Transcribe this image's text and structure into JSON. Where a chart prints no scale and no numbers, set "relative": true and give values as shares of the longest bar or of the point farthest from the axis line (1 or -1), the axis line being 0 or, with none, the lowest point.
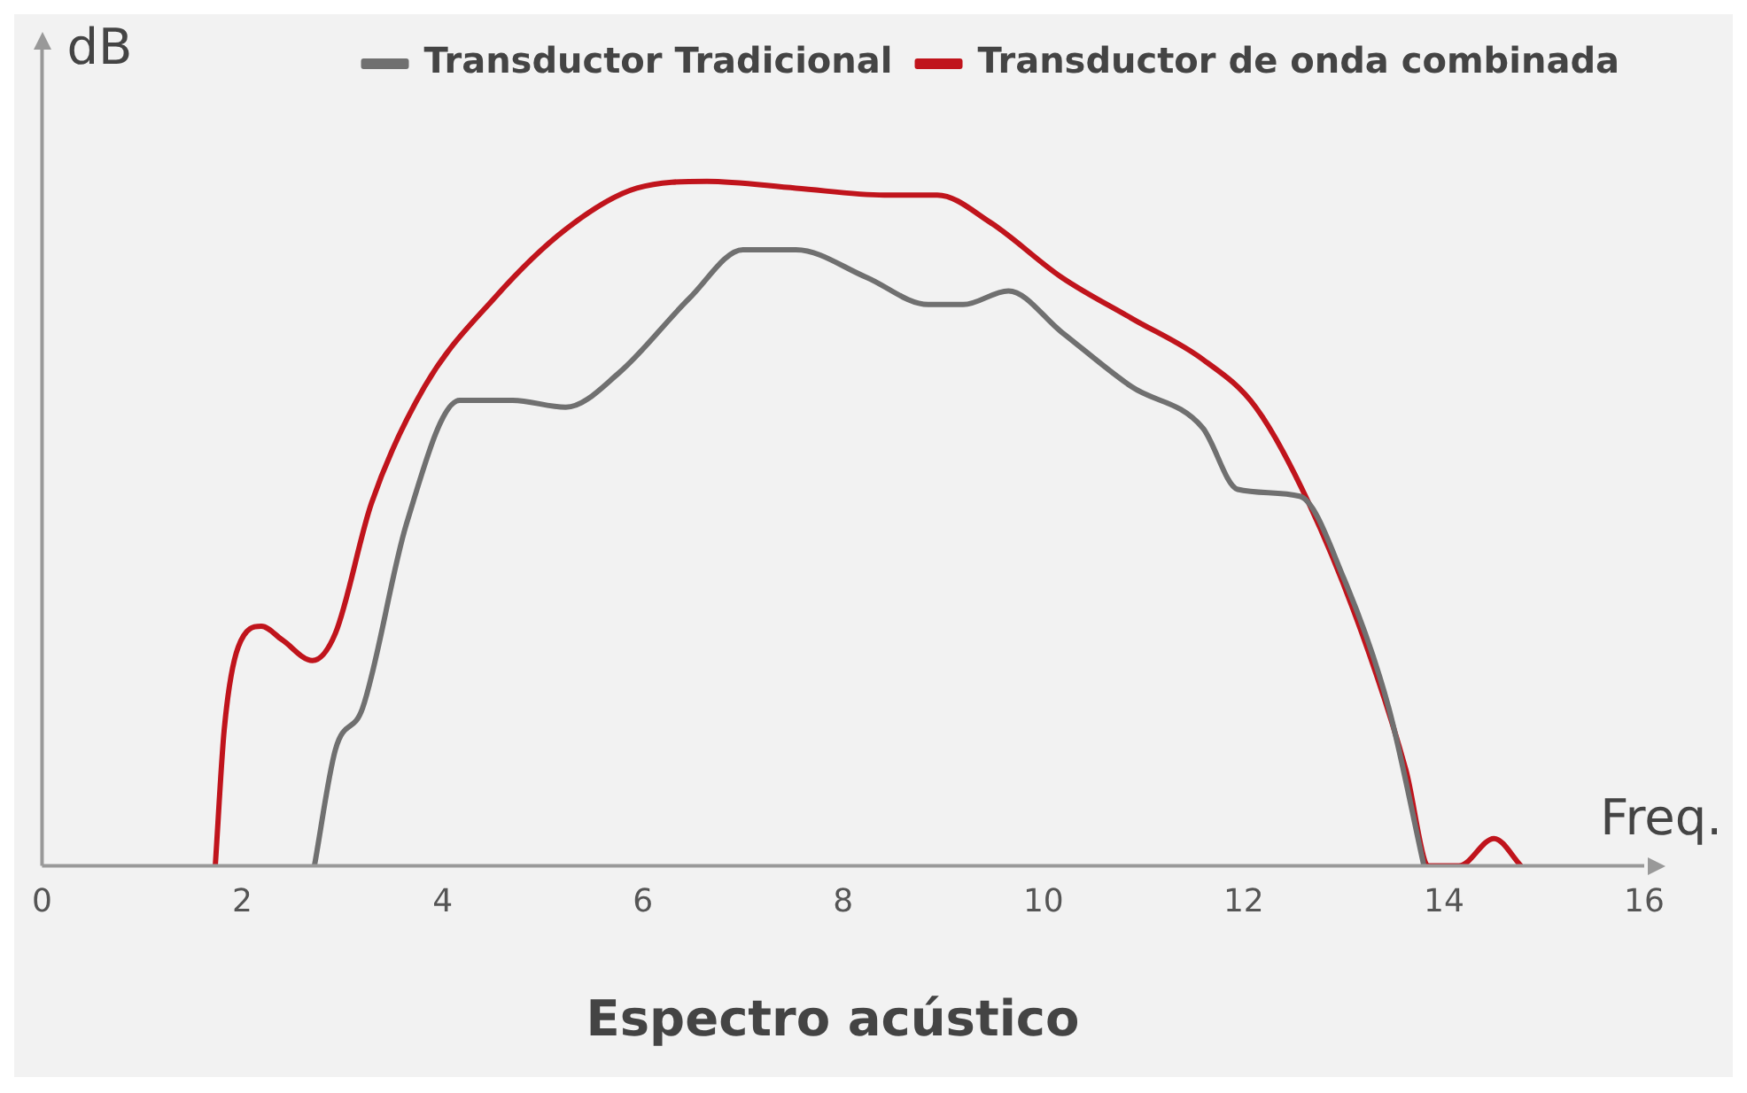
{
  "chart_data": {
    "type": "line",
    "title": "Espectro acústico",
    "xlabel": "Freq.",
    "ylabel": "dB",
    "relative": true,
    "xlim": [
      0,
      16
    ],
    "xticks": [
      0,
      2,
      4,
      6,
      8,
      10,
      12,
      14,
      16
    ],
    "grid": false,
    "legend": "top right",
    "marker": "none",
    "line_style": "solid",
    "series": [
      {
        "name": "Transductor Tradicional",
        "color": "#707070",
        "x": [
          2.72,
          2.93,
          3.2,
          3.64,
          4.17,
          4.7,
          5.23,
          5.76,
          6.47,
          7.0,
          7.53,
          8.23,
          8.85,
          9.2,
          9.65,
          10.18,
          10.88,
          11.59,
          11.94,
          12.56,
          13.0,
          13.45,
          13.8
        ],
        "values": [
          0,
          0.17,
          0.23,
          0.5,
          0.68,
          0.68,
          0.67,
          0.72,
          0.83,
          0.9,
          0.9,
          0.86,
          0.82,
          0.82,
          0.84,
          0.78,
          0.7,
          0.64,
          0.55,
          0.54,
          0.42,
          0.23,
          0
        ]
      },
      {
        "name": "Transductor de onda combinada",
        "color": "#c0141c",
        "x": [
          1.73,
          1.82,
          1.96,
          2.19,
          2.4,
          2.7,
          2.93,
          3.29,
          3.82,
          4.52,
          5.23,
          5.94,
          6.64,
          7.53,
          8.41,
          8.94,
          9.47,
          10.18,
          10.88,
          11.59,
          12.12,
          12.65,
          13.18,
          13.62,
          13.85,
          14.15,
          14.5,
          14.77
        ],
        "values": [
          0,
          0.2,
          0.32,
          0.35,
          0.33,
          0.3,
          0.34,
          0.53,
          0.7,
          0.83,
          0.93,
          0.99,
          1,
          0.99,
          0.98,
          0.98,
          0.94,
          0.86,
          0.8,
          0.74,
          0.67,
          0.53,
          0.34,
          0.14,
          0,
          0,
          0.04,
          0
        ]
      }
    ]
  }
}
